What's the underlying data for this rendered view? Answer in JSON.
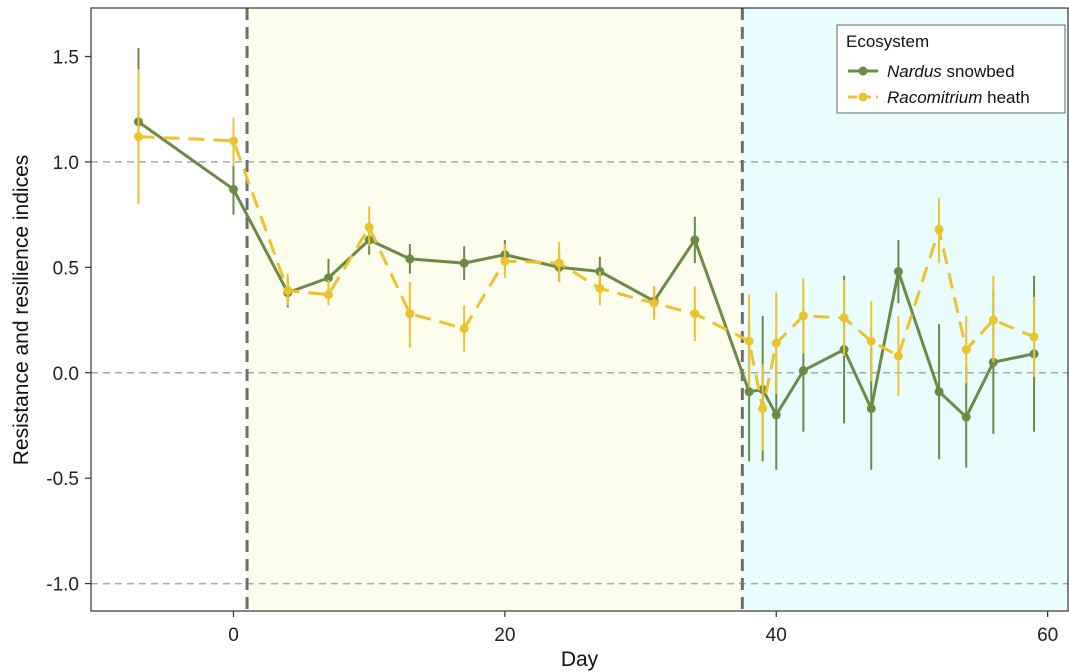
{
  "chart_data": {
    "type": "line",
    "xlabel": "Day",
    "ylabel": "Resistance and resilience indices",
    "xlim": [
      -10.5,
      61.5
    ],
    "ylim": [
      -1.13,
      1.73
    ],
    "xticks": [
      0,
      20,
      40,
      60
    ],
    "xtick_labels": [
      "0",
      "20",
      "40",
      "60"
    ],
    "yticks": [
      -1.0,
      -0.5,
      0.0,
      0.5,
      1.0,
      1.5
    ],
    "ytick_labels": [
      "-1.0",
      "-0.5",
      "0.0",
      "0.5",
      "1.0",
      "1.5"
    ],
    "reference_lines_y": [
      -1.0,
      0.0,
      1.0
    ],
    "phase_boundaries_x": [
      1,
      37.5
    ],
    "phases": [
      {
        "x_start": 1,
        "x_end": 37.5,
        "color": "#fdfdee"
      },
      {
        "x_start": 37.5,
        "x_end": 61.5,
        "color": "#eafdfe"
      }
    ],
    "grid": false,
    "legend": {
      "title": "Ecosystem",
      "position": "top-right"
    },
    "series": [
      {
        "name_italic": "Nardus",
        "name_rest": " snowbed",
        "color": "#6b8a45",
        "line_style": "solid",
        "points": [
          {
            "x": -7,
            "y": 1.19,
            "lo": 0.85,
            "hi": 1.54
          },
          {
            "x": 0,
            "y": 0.87,
            "lo": 0.75,
            "hi": 0.99
          },
          {
            "x": 4,
            "y": 0.38,
            "lo": 0.31,
            "hi": 0.45
          },
          {
            "x": 7,
            "y": 0.45,
            "lo": 0.37,
            "hi": 0.54
          },
          {
            "x": 10,
            "y": 0.63,
            "lo": 0.56,
            "hi": 0.7
          },
          {
            "x": 13,
            "y": 0.54,
            "lo": 0.47,
            "hi": 0.61
          },
          {
            "x": 17,
            "y": 0.52,
            "lo": 0.44,
            "hi": 0.6
          },
          {
            "x": 20,
            "y": 0.56,
            "lo": 0.49,
            "hi": 0.63
          },
          {
            "x": 24,
            "y": 0.5,
            "lo": 0.43,
            "hi": 0.57
          },
          {
            "x": 27,
            "y": 0.48,
            "lo": 0.42,
            "hi": 0.55
          },
          {
            "x": 31,
            "y": 0.34,
            "lo": 0.27,
            "hi": 0.41
          },
          {
            "x": 34,
            "y": 0.63,
            "lo": 0.52,
            "hi": 0.74
          },
          {
            "x": 38,
            "y": -0.09,
            "lo": -0.42,
            "hi": 0.24
          },
          {
            "x": 39,
            "y": -0.08,
            "lo": -0.42,
            "hi": 0.27
          },
          {
            "x": 40,
            "y": -0.2,
            "lo": -0.46,
            "hi": 0.05
          },
          {
            "x": 42,
            "y": 0.01,
            "lo": -0.28,
            "hi": 0.31
          },
          {
            "x": 45,
            "y": 0.11,
            "lo": -0.24,
            "hi": 0.46
          },
          {
            "x": 47,
            "y": -0.17,
            "lo": -0.46,
            "hi": 0.12
          },
          {
            "x": 49,
            "y": 0.48,
            "lo": 0.33,
            "hi": 0.63
          },
          {
            "x": 52,
            "y": -0.09,
            "lo": -0.41,
            "hi": 0.23
          },
          {
            "x": 54,
            "y": -0.21,
            "lo": -0.45,
            "hi": 0.03
          },
          {
            "x": 56,
            "y": 0.05,
            "lo": -0.29,
            "hi": 0.39
          },
          {
            "x": 59,
            "y": 0.09,
            "lo": -0.28,
            "hi": 0.46
          }
        ]
      },
      {
        "name_italic": "Racomitrium",
        "name_rest": " heath",
        "color": "#ecc22e",
        "line_style": "dashed",
        "points": [
          {
            "x": -7,
            "y": 1.12,
            "lo": 0.8,
            "hi": 1.44
          },
          {
            "x": 0,
            "y": 1.1,
            "lo": 0.98,
            "hi": 1.21
          },
          {
            "x": 4,
            "y": 0.39,
            "lo": 0.32,
            "hi": 0.47
          },
          {
            "x": 7,
            "y": 0.37,
            "lo": 0.32,
            "hi": 0.44
          },
          {
            "x": 10,
            "y": 0.69,
            "lo": 0.6,
            "hi": 0.79
          },
          {
            "x": 13,
            "y": 0.28,
            "lo": 0.12,
            "hi": 0.43
          },
          {
            "x": 17,
            "y": 0.21,
            "lo": 0.1,
            "hi": 0.32
          },
          {
            "x": 20,
            "y": 0.53,
            "lo": 0.45,
            "hi": 0.61
          },
          {
            "x": 24,
            "y": 0.52,
            "lo": 0.43,
            "hi": 0.62
          },
          {
            "x": 27,
            "y": 0.4,
            "lo": 0.32,
            "hi": 0.48
          },
          {
            "x": 31,
            "y": 0.33,
            "lo": 0.25,
            "hi": 0.41
          },
          {
            "x": 34,
            "y": 0.28,
            "lo": 0.15,
            "hi": 0.41
          },
          {
            "x": 38,
            "y": 0.15,
            "lo": -0.07,
            "hi": 0.37
          },
          {
            "x": 39,
            "y": -0.17,
            "lo": -0.37,
            "hi": 0.04
          },
          {
            "x": 40,
            "y": 0.14,
            "lo": -0.1,
            "hi": 0.38
          },
          {
            "x": 42,
            "y": 0.27,
            "lo": 0.09,
            "hi": 0.45
          },
          {
            "x": 45,
            "y": 0.26,
            "lo": 0.08,
            "hi": 0.44
          },
          {
            "x": 47,
            "y": 0.15,
            "lo": -0.04,
            "hi": 0.34
          },
          {
            "x": 49,
            "y": 0.08,
            "lo": -0.11,
            "hi": 0.27
          },
          {
            "x": 52,
            "y": 0.68,
            "lo": 0.52,
            "hi": 0.83
          },
          {
            "x": 54,
            "y": 0.11,
            "lo": -0.05,
            "hi": 0.27
          },
          {
            "x": 56,
            "y": 0.25,
            "lo": 0.05,
            "hi": 0.46
          },
          {
            "x": 59,
            "y": 0.17,
            "lo": -0.02,
            "hi": 0.36
          }
        ]
      }
    ]
  }
}
